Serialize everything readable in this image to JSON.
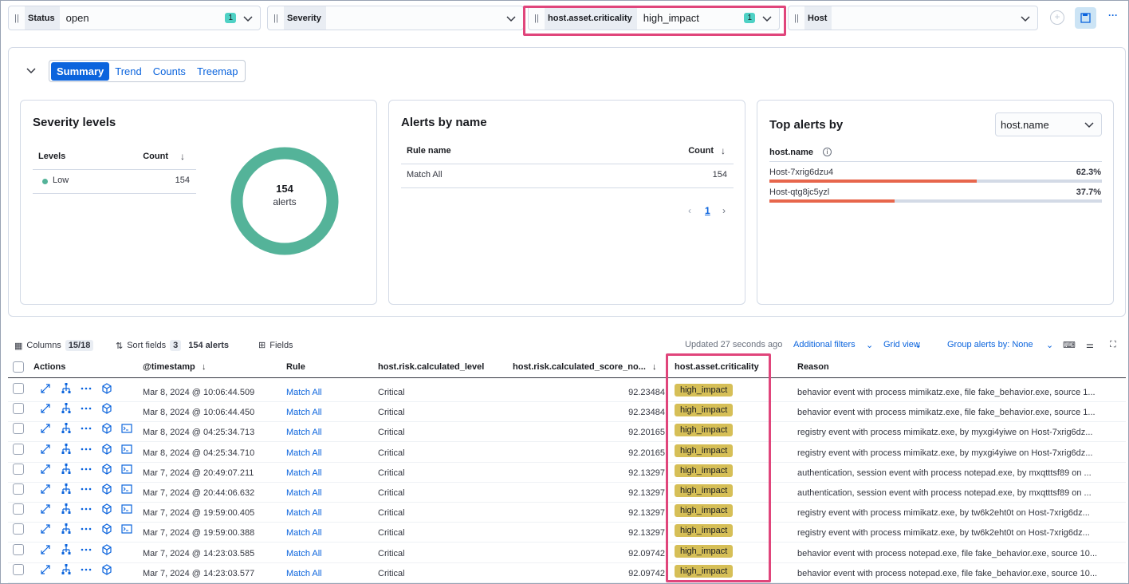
{
  "filters": [
    {
      "label": "Status",
      "value": "open",
      "count": 1
    },
    {
      "label": "Severity"
    },
    {
      "label": "host.asset.criticality",
      "value": "high_impact",
      "count": 1
    },
    {
      "label": "Host"
    }
  ],
  "summary": {
    "tabs": [
      "Summary",
      "Trend",
      "Counts",
      "Treemap"
    ],
    "severity": {
      "title": "Severity levels",
      "columns": [
        "Levels",
        "Count"
      ],
      "rows": [
        {
          "level": "Low",
          "count": 154
        }
      ],
      "total": 154,
      "total_label": "alerts"
    },
    "alerts_by_name": {
      "title": "Alerts by name",
      "columns": [
        "Rule name",
        "Count"
      ],
      "rows": [
        {
          "name": "Match All",
          "count": 154
        }
      ],
      "page": 1
    },
    "top_alerts": {
      "title": "Top alerts by",
      "group_by": "host.name",
      "column": "host.name",
      "rows": [
        {
          "name": "Host-7xrig6dzu4",
          "share": {
            "value": 62.3,
            "label": "62.3%"
          }
        },
        {
          "name": "Host-qtg8jc5yzl",
          "share": {
            "value": 37.7,
            "label": "37.7%"
          }
        }
      ]
    }
  },
  "table": {
    "toolbar": {
      "columns": "Columns",
      "columns_count": "15/18",
      "sort": "Sort fields",
      "sort_count": 3,
      "alerts": "154 alerts",
      "fields": "Fields",
      "updated": "Updated 27 seconds ago",
      "additional_filters": "Additional filters",
      "grid_view": "Grid view",
      "group_by": "Group alerts by: None"
    },
    "headers": [
      "Actions",
      "@timestamp",
      "Rule",
      "host.risk.calculated_level",
      "host.risk.calculated_score_no...",
      "host.asset.criticality",
      "Reason"
    ],
    "rows": [
      {
        "timestamp": "Mar 8, 2024 @ 10:06:44.509",
        "rule": "Match All",
        "level": "Critical",
        "score": 92.23484,
        "criticality": "high_impact",
        "reason": "behavior event with process mimikatz.exe, file fake_behavior.exe, source 1..."
      },
      {
        "timestamp": "Mar 8, 2024 @ 10:06:44.450",
        "rule": "Match All",
        "level": "Critical",
        "score": 92.23484,
        "criticality": "high_impact",
        "reason": "behavior event with process mimikatz.exe, file fake_behavior.exe, source 1..."
      },
      {
        "timestamp": "Mar 8, 2024 @ 04:25:34.713",
        "rule": "Match All",
        "level": "Critical",
        "score": 92.20165,
        "criticality": "high_impact",
        "reason": "registry event with process mimikatz.exe, by myxgi4yiwe on Host-7xrig6dz..."
      },
      {
        "timestamp": "Mar 8, 2024 @ 04:25:34.710",
        "rule": "Match All",
        "level": "Critical",
        "score": 92.20165,
        "criticality": "high_impact",
        "reason": "registry event with process mimikatz.exe, by myxgi4yiwe on Host-7xrig6dz..."
      },
      {
        "timestamp": "Mar 7, 2024 @ 20:49:07.211",
        "rule": "Match All",
        "level": "Critical",
        "score": 92.13297,
        "criticality": "high_impact",
        "reason": "authentication, session event with process notepad.exe, by mxqtttsf89 on ..."
      },
      {
        "timestamp": "Mar 7, 2024 @ 20:44:06.632",
        "rule": "Match All",
        "level": "Critical",
        "score": 92.13297,
        "criticality": "high_impact",
        "reason": "authentication, session event with process notepad.exe, by mxqtttsf89 on ..."
      },
      {
        "timestamp": "Mar 7, 2024 @ 19:59:00.405",
        "rule": "Match All",
        "level": "Critical",
        "score": 92.13297,
        "criticality": "high_impact",
        "reason": "registry event with process mimikatz.exe, by tw6k2eht0t on Host-7xrig6dz..."
      },
      {
        "timestamp": "Mar 7, 2024 @ 19:59:00.388",
        "rule": "Match All",
        "level": "Critical",
        "score": 92.13297,
        "criticality": "high_impact",
        "reason": "registry event with process mimikatz.exe, by tw6k2eht0t on Host-7xrig6dz..."
      },
      {
        "timestamp": "Mar 7, 2024 @ 14:23:03.585",
        "rule": "Match All",
        "level": "Critical",
        "score": 92.09742,
        "criticality": "high_impact",
        "reason": "behavior event with process notepad.exe, file fake_behavior.exe, source 10..."
      },
      {
        "timestamp": "Mar 7, 2024 @ 14:23:03.577",
        "rule": "Match All",
        "level": "Critical",
        "score": 92.09742,
        "criticality": "high_impact",
        "reason": "behavior event with process notepad.exe, file fake_behavior.exe, source 10..."
      }
    ]
  }
}
